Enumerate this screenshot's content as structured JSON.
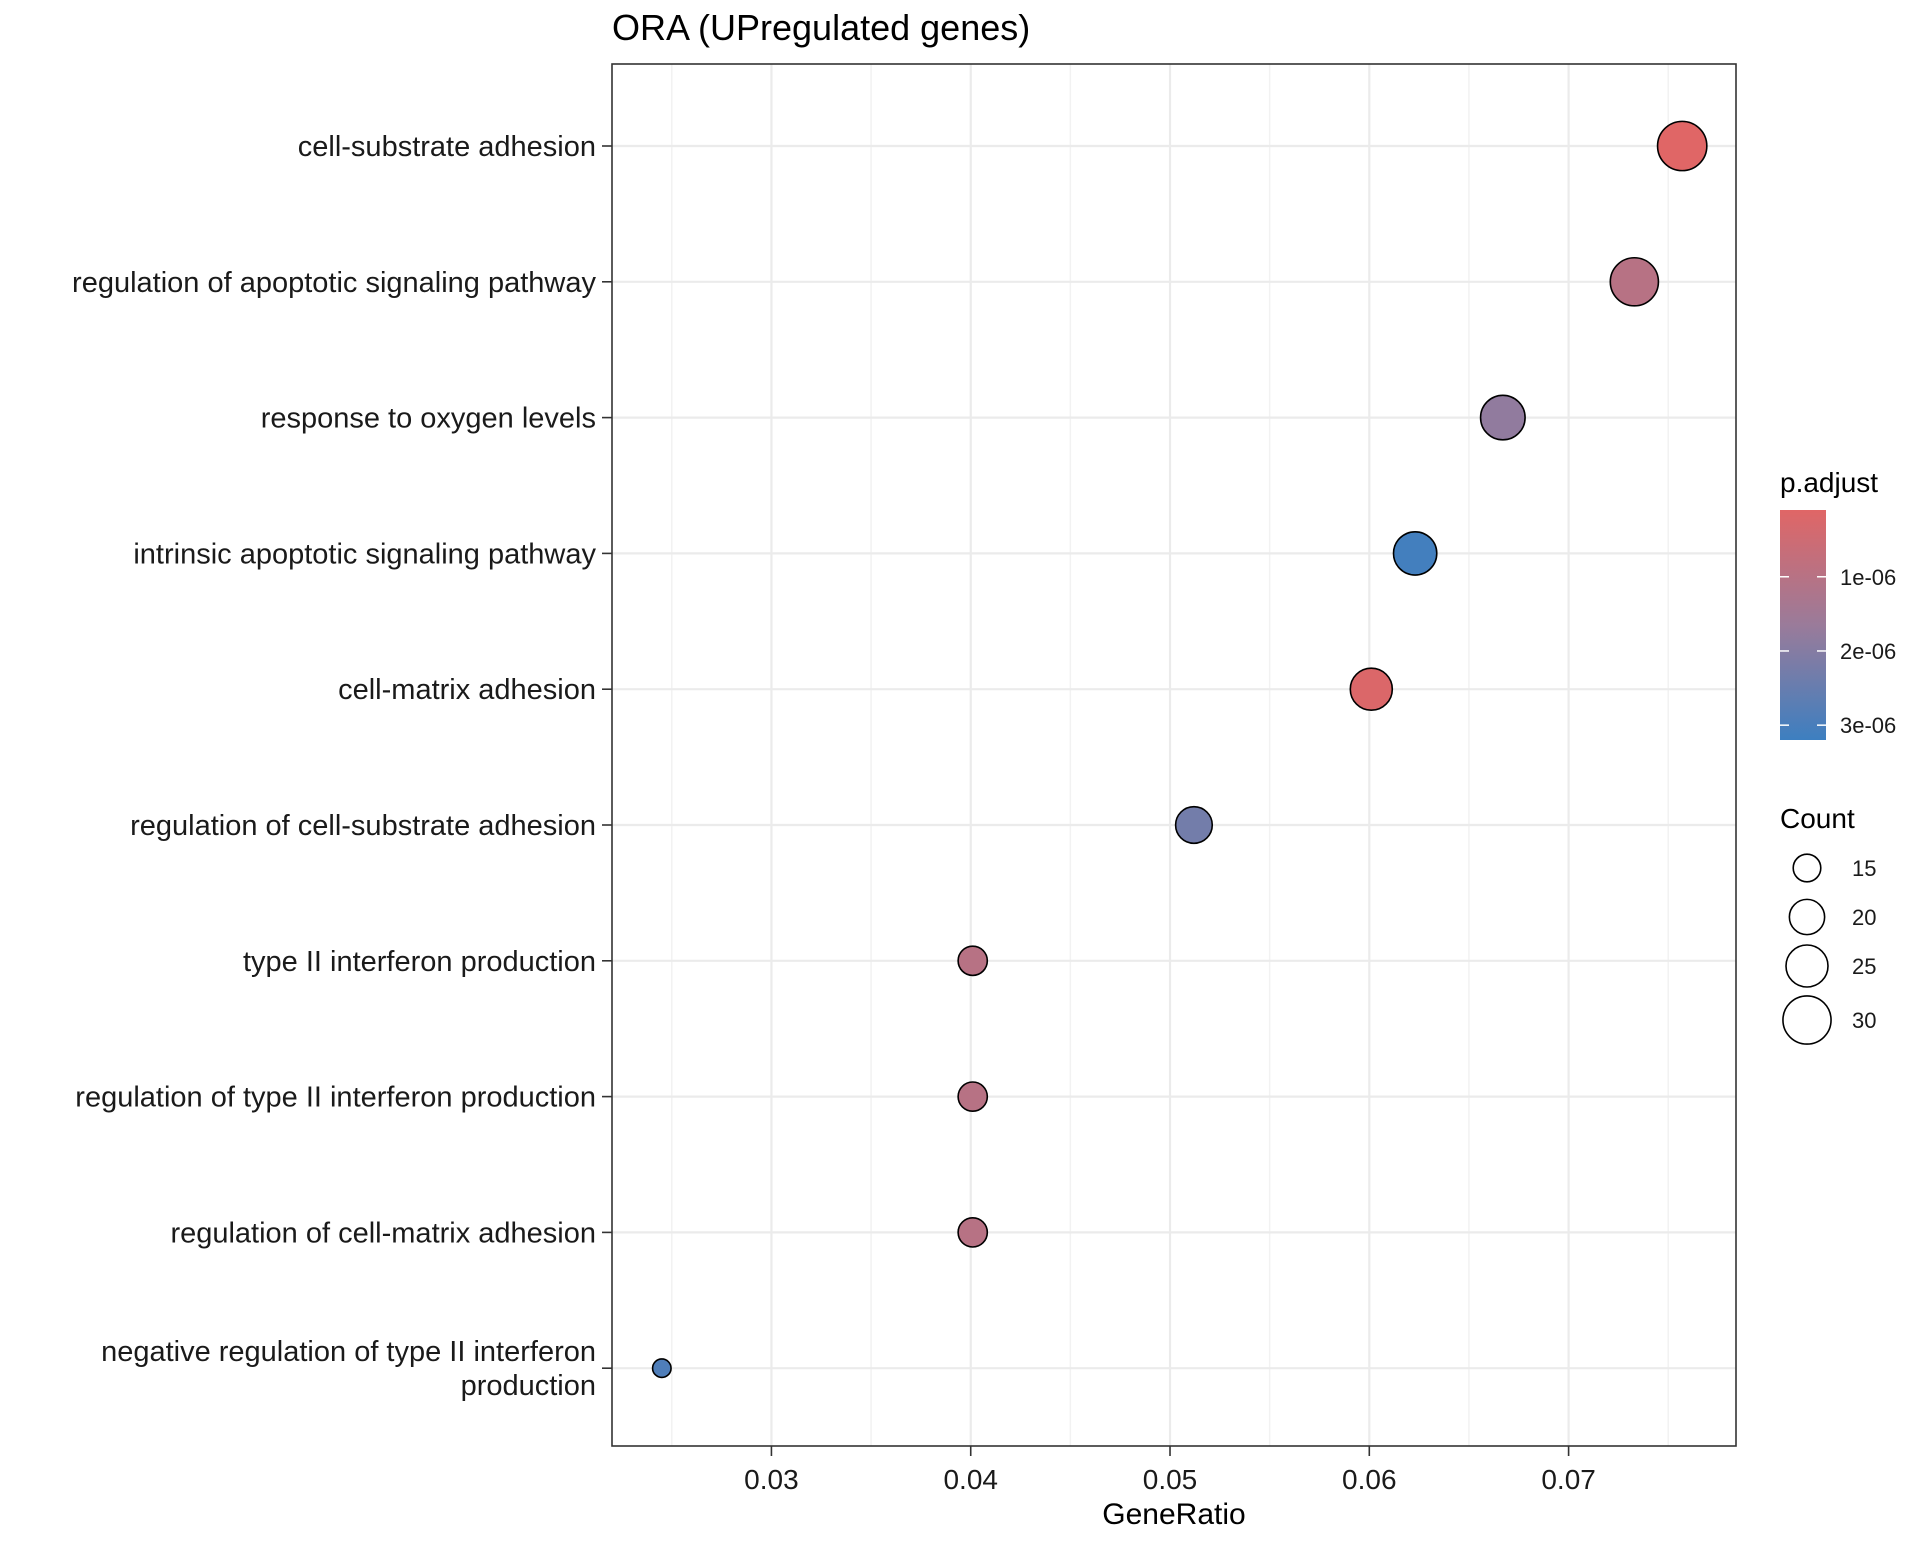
{
  "chart_data": {
    "type": "scatter",
    "title": "ORA (UPregulated genes)",
    "xlabel": "GeneRatio",
    "ylabel": "",
    "xlim": [
      0.022,
      0.0784
    ],
    "x_ticks": [
      0.03,
      0.04,
      0.05,
      0.06,
      0.07
    ],
    "x_tick_labels": [
      "0.03",
      "0.04",
      "0.05",
      "0.06",
      "0.07"
    ],
    "grid": true,
    "legend_position": "right",
    "categories": [
      [
        "cell-substrate adhesion"
      ],
      [
        "regulation of apoptotic signaling pathway"
      ],
      [
        "response to oxygen levels"
      ],
      [
        "intrinsic apoptotic signaling pathway"
      ],
      [
        "cell-matrix adhesion"
      ],
      [
        "regulation of cell-substrate adhesion"
      ],
      [
        "type II interferon production"
      ],
      [
        "regulation of type II interferon production"
      ],
      [
        "regulation of cell-matrix adhesion"
      ],
      [
        "negative regulation of type II interferon",
        "production"
      ]
    ],
    "points": [
      {
        "gene_ratio": 0.0757,
        "count": 31,
        "p_adjust": 1e-07
      },
      {
        "gene_ratio": 0.0733,
        "count": 30,
        "p_adjust": 1e-06
      },
      {
        "gene_ratio": 0.0667,
        "count": 27,
        "p_adjust": 1.8e-06
      },
      {
        "gene_ratio": 0.0623,
        "count": 26,
        "p_adjust": 3.1e-06
      },
      {
        "gene_ratio": 0.0601,
        "count": 25,
        "p_adjust": 2e-07
      },
      {
        "gene_ratio": 0.0512,
        "count": 21,
        "p_adjust": 2.3e-06
      },
      {
        "gene_ratio": 0.0401,
        "count": 16,
        "p_adjust": 1e-06
      },
      {
        "gene_ratio": 0.0401,
        "count": 16,
        "p_adjust": 1e-06
      },
      {
        "gene_ratio": 0.0401,
        "count": 16,
        "p_adjust": 1e-06
      },
      {
        "gene_ratio": 0.0245,
        "count": 10,
        "p_adjust": 2.9e-06
      }
    ],
    "color_legend": {
      "title": "p.adjust",
      "range": [
        1e-07,
        3.2e-06
      ],
      "ticks": [
        1e-06,
        2e-06,
        3e-06
      ],
      "tick_labels": [
        "1e-06",
        "2e-06",
        "3e-06"
      ],
      "low_color": "#e06666",
      "mid_color": "#9a7b9a",
      "high_color": "#3d7fc0"
    },
    "size_legend": {
      "title": "Count",
      "values": [
        15,
        20,
        25,
        30
      ],
      "labels": [
        "15",
        "20",
        "25",
        "30"
      ]
    },
    "point_stroke_color": "#000000",
    "grid_color": "#ebebeb",
    "panel_border_color": "#333333"
  }
}
